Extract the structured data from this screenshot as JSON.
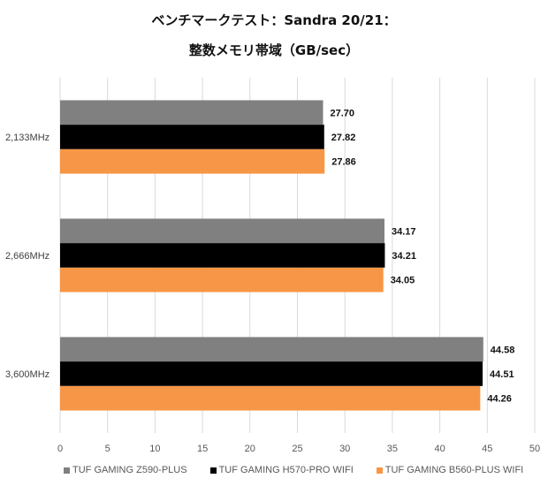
{
  "chart_data": {
    "type": "bar",
    "orientation": "horizontal",
    "title_line1": "ベンチマークテスト：Sandra 20/21：",
    "title_line2": "整数メモリ帯域（GB/sec）",
    "categories": [
      "2,133MHz",
      "2,666MHz",
      "3,600MHz"
    ],
    "series": [
      {
        "name": "TUF GAMING Z590-PLUS",
        "color": "#808080",
        "values": [
          27.7,
          34.17,
          44.58
        ]
      },
      {
        "name": "TUF GAMING H570-PRO WIFI",
        "color": "#000000",
        "values": [
          27.82,
          34.21,
          44.51
        ]
      },
      {
        "name": "TUF GAMING B560-PLUS WIFI",
        "color": "#F79646",
        "values": [
          27.86,
          34.05,
          44.26
        ]
      }
    ],
    "xlim": [
      0,
      50
    ],
    "xticks": [
      0,
      5,
      10,
      15,
      20,
      25,
      30,
      35,
      40,
      45,
      50
    ],
    "grid": true,
    "legend_position": "bottom",
    "xlabel": "",
    "ylabel": ""
  }
}
